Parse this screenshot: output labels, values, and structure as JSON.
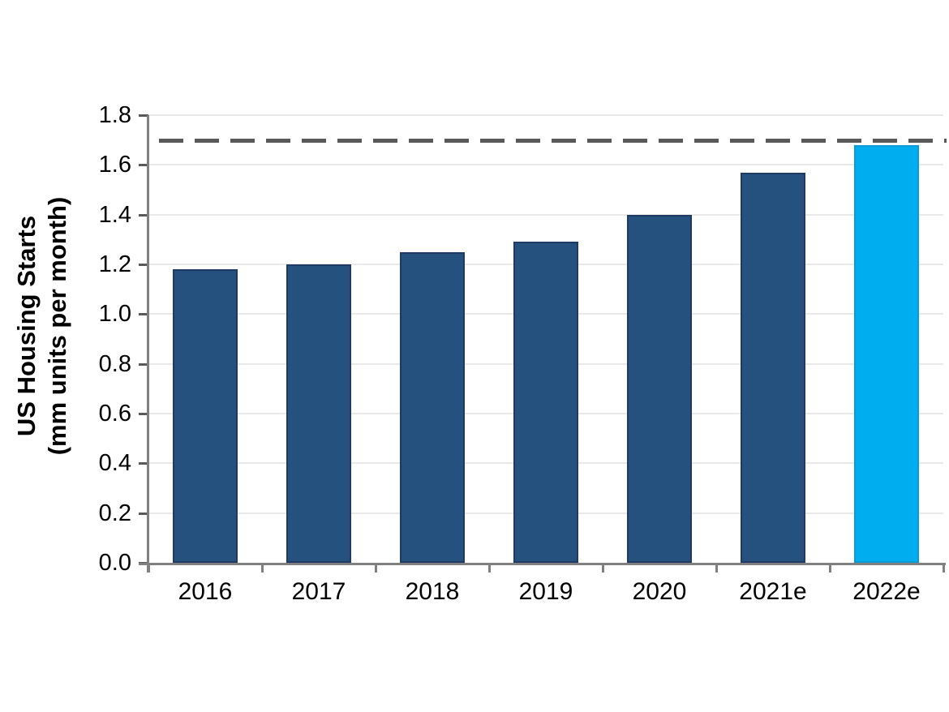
{
  "chart_data": {
    "type": "bar",
    "title": "",
    "xlabel": "",
    "ylabel_line1": "US Housing Starts",
    "ylabel_line2": "(mm units per month)",
    "categories": [
      "2016",
      "2017",
      "2018",
      "2019",
      "2020",
      "2021e",
      "2022e"
    ],
    "values": [
      1.18,
      1.2,
      1.25,
      1.29,
      1.4,
      1.57,
      1.68
    ],
    "ylim": [
      0,
      1.8
    ],
    "ytick_step": 0.2,
    "ytick_labels": [
      "0.0",
      "0.2",
      "0.4",
      "0.6",
      "0.8",
      "1.0",
      "1.2",
      "1.4",
      "1.6",
      "1.8"
    ],
    "grid": "horizontal",
    "legend_position": "none",
    "highlight_index": 6,
    "reference_line": {
      "value": 1.7,
      "style": "dashed"
    }
  },
  "colors": {
    "bar_default_fill": "#24517D",
    "bar_default_border": "#1F3A64",
    "bar_highlight_fill": "#00AEEF",
    "bar_highlight_border": "#0A9BD6",
    "reference_line": "#595959",
    "gridline": "#E9E9E9",
    "axis_line": "#808080",
    "ytick_mark": "#595959",
    "text": "#000000",
    "background": "#FFFFFF"
  }
}
